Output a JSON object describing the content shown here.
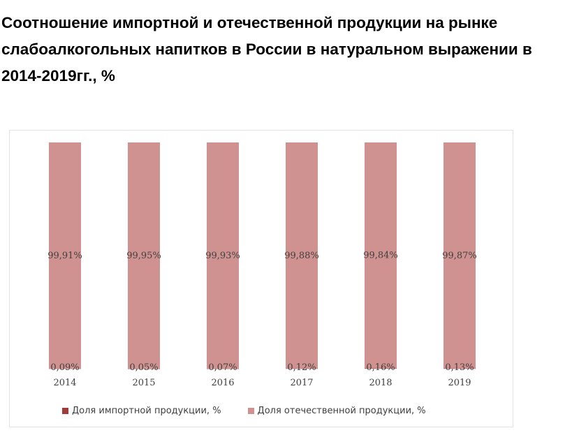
{
  "chart_data": {
    "type": "bar",
    "stacked": true,
    "title": "Соотношение импортной и отечественной продукции на рынке слабоалкогольных напитков в России в натуральном выражении в 2014-2019гг., %",
    "xlabel": "",
    "ylabel": "",
    "ylim": [
      0,
      100
    ],
    "grid": false,
    "legend_position": "bottom",
    "categories": [
      "2014",
      "2015",
      "2016",
      "2017",
      "2018",
      "2019"
    ],
    "series": [
      {
        "name": "Доля импортной продукции, %",
        "color": "#a33a3a",
        "values": [
          0.09,
          0.05,
          0.07,
          0.12,
          0.16,
          0.13
        ],
        "labels": [
          "0,09%",
          "0,05%",
          "0,07%",
          "0,12%",
          "0,16%",
          "0,13%"
        ]
      },
      {
        "name": "Доля отечественной продукции, %",
        "color": "#d09290",
        "values": [
          99.91,
          99.95,
          99.93,
          99.88,
          99.84,
          99.87
        ],
        "labels": [
          "99,91%",
          "99,95%",
          "99,93%",
          "99,88%",
          "99,84%",
          "99,87%"
        ]
      }
    ]
  }
}
